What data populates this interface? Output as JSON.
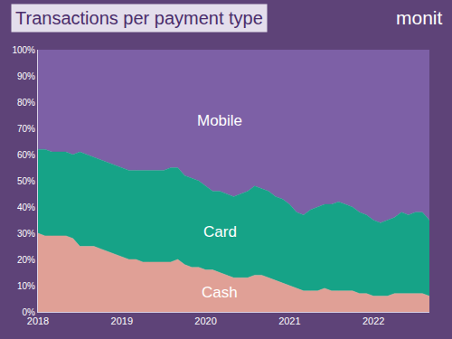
{
  "chart_data": {
    "type": "area",
    "title": "Transactions per payment type",
    "annotations": [
      "monit"
    ],
    "stacked": true,
    "grid": false,
    "categories": [
      "2018",
      null,
      null,
      null,
      null,
      null,
      null,
      null,
      null,
      null,
      null,
      null,
      "2019",
      null,
      null,
      null,
      null,
      null,
      null,
      null,
      null,
      null,
      null,
      null,
      "2020",
      null,
      null,
      null,
      null,
      null,
      null,
      null,
      null,
      null,
      null,
      null,
      "2021",
      null,
      null,
      null,
      null,
      null,
      null,
      null,
      null,
      null,
      null,
      null,
      "2022",
      null,
      null,
      null,
      null,
      null,
      null,
      null,
      null
    ],
    "ylim": [
      0,
      100
    ],
    "yticks": [
      {
        "value": 0,
        "label": "0%"
      },
      {
        "value": 10,
        "label": "10%"
      },
      {
        "value": 20,
        "label": "20%"
      },
      {
        "value": 30,
        "label": "30%"
      },
      {
        "value": 40,
        "label": "40%"
      },
      {
        "value": 50,
        "label": "50%"
      },
      {
        "value": 60,
        "label": "60%"
      },
      {
        "value": 70,
        "label": "70%"
      },
      {
        "value": 80,
        "label": "80%"
      },
      {
        "value": 90,
        "label": "90%"
      },
      {
        "value": 100,
        "label": "100%"
      }
    ],
    "series": [
      {
        "name": "Cash",
        "color": "#e0a096",
        "values": [
          30,
          29,
          29,
          29,
          29,
          28,
          25,
          25,
          25,
          24,
          23,
          22,
          21,
          20,
          20,
          19,
          19,
          19,
          19,
          19,
          20,
          18,
          17,
          17,
          16,
          16,
          15,
          14,
          13,
          13,
          13,
          14,
          14,
          13,
          12,
          11,
          10,
          9,
          8,
          8,
          8,
          9,
          8,
          8,
          8,
          8,
          7,
          7,
          6,
          6,
          6,
          7,
          7,
          7,
          7,
          7,
          6
        ]
      },
      {
        "name": "Card",
        "color": "#16a387",
        "values": [
          32,
          33,
          32,
          32,
          32,
          32,
          36,
          35,
          34,
          34,
          34,
          34,
          34,
          34,
          34,
          35,
          35,
          35,
          35,
          36,
          35,
          34,
          34,
          33,
          32,
          30,
          31,
          31,
          31,
          32,
          33,
          34,
          33,
          33,
          32,
          32,
          31,
          29,
          29,
          31,
          32,
          32,
          33,
          34,
          33,
          32,
          31,
          30,
          29,
          28,
          29,
          29,
          31,
          30,
          31,
          31,
          29
        ]
      },
      {
        "name": "Mobile",
        "color": "#7d60a6",
        "values": [
          38,
          38,
          39,
          39,
          39,
          40,
          39,
          40,
          41,
          42,
          43,
          44,
          45,
          46,
          46,
          46,
          46,
          46,
          46,
          45,
          45,
          48,
          49,
          50,
          52,
          54,
          54,
          55,
          56,
          55,
          54,
          52,
          53,
          54,
          56,
          57,
          59,
          62,
          63,
          61,
          60,
          59,
          59,
          58,
          59,
          60,
          62,
          63,
          65,
          66,
          65,
          64,
          62,
          63,
          62,
          62,
          65
        ]
      }
    ]
  }
}
